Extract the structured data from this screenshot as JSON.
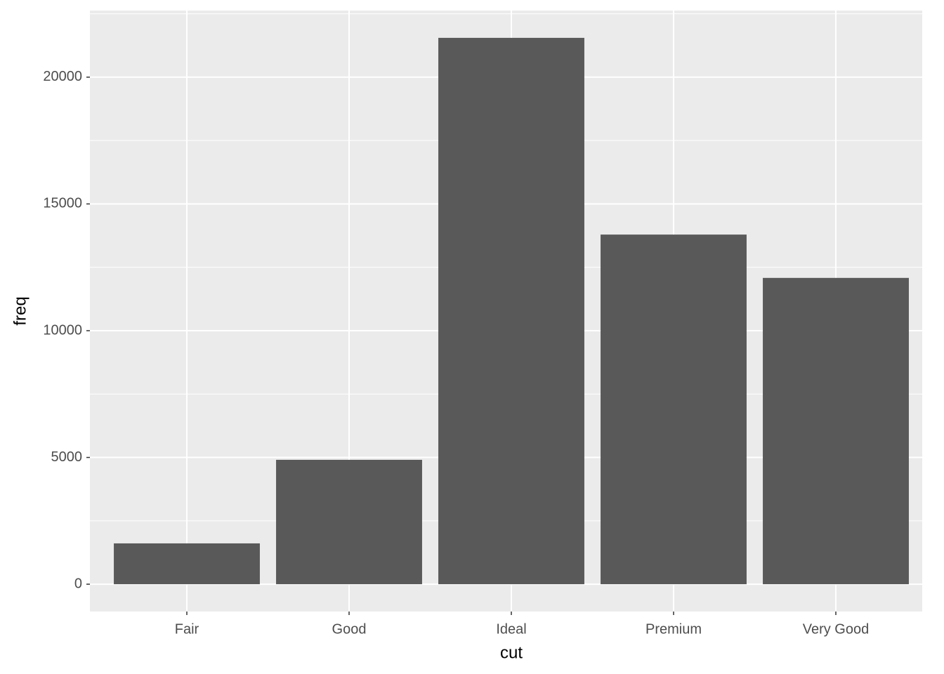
{
  "chart_data": {
    "type": "bar",
    "x_label": "cut",
    "y_label": "freq",
    "categories": [
      "Fair",
      "Good",
      "Ideal",
      "Premium",
      "Very Good"
    ],
    "values": [
      1610,
      4906,
      21551,
      13791,
      12082
    ],
    "color": "#595959",
    "ylim": [
      -1077.55,
      22628.55
    ],
    "yticks": [
      0,
      5000,
      10000,
      15000,
      20000
    ],
    "grid": true
  }
}
